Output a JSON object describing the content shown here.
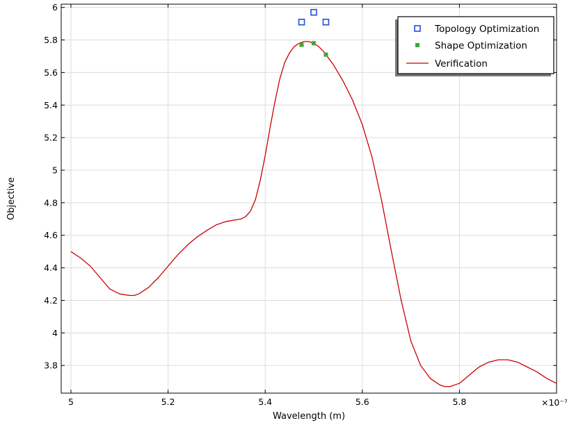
{
  "chart_data": {
    "type": "line",
    "xlabel": "Wavelength (m)",
    "ylabel": "Objective",
    "x_multiplier_label": "×10⁻⁷",
    "xlim": [
      4.98,
      6.0
    ],
    "ylim": [
      3.63,
      6.02
    ],
    "x_ticks": [
      5,
      5.2,
      5.4,
      5.6,
      5.8
    ],
    "x_tick_labels": [
      "5",
      "5.2",
      "5.4",
      "5.6",
      "5.8"
    ],
    "y_ticks": [
      3.8,
      4,
      4.2,
      4.4,
      4.6,
      4.8,
      5,
      5.2,
      5.4,
      5.6,
      5.8,
      6
    ],
    "y_tick_labels": [
      "3.8",
      "4",
      "4.2",
      "4.4",
      "4.6",
      "4.8",
      "5",
      "5.2",
      "5.4",
      "5.6",
      "5.8",
      "6"
    ],
    "grid": true,
    "legend_position": "top-right",
    "series": [
      {
        "name": "Topology Optimization",
        "kind": "scatter",
        "marker": "hollow-square",
        "color": "#1f4fe0",
        "x": [
          5.475,
          5.5,
          5.525
        ],
        "y": [
          5.91,
          5.97,
          5.91
        ]
      },
      {
        "name": "Shape Optimization",
        "kind": "scatter",
        "marker": "filled-square",
        "color": "#3aaa35",
        "x": [
          5.475,
          5.5,
          5.525
        ],
        "y": [
          5.77,
          5.78,
          5.71
        ]
      },
      {
        "name": "Verification",
        "kind": "line",
        "color": "#cc0000",
        "x": [
          5.0,
          5.02,
          5.04,
          5.06,
          5.08,
          5.1,
          5.12,
          5.13,
          5.14,
          5.16,
          5.18,
          5.2,
          5.22,
          5.24,
          5.26,
          5.28,
          5.3,
          5.32,
          5.34,
          5.35,
          5.36,
          5.37,
          5.38,
          5.39,
          5.4,
          5.41,
          5.42,
          5.43,
          5.44,
          5.45,
          5.46,
          5.47,
          5.48,
          5.49,
          5.5,
          5.51,
          5.52,
          5.53,
          5.54,
          5.56,
          5.58,
          5.6,
          5.62,
          5.64,
          5.66,
          5.68,
          5.7,
          5.72,
          5.74,
          5.76,
          5.77,
          5.78,
          5.8,
          5.82,
          5.84,
          5.86,
          5.88,
          5.9,
          5.92,
          5.94,
          5.96,
          5.98,
          6.0
        ],
        "y": [
          4.5,
          4.46,
          4.41,
          4.34,
          4.27,
          4.24,
          4.23,
          4.23,
          4.24,
          4.28,
          4.34,
          4.41,
          4.48,
          4.54,
          4.59,
          4.63,
          4.665,
          4.685,
          4.695,
          4.7,
          4.715,
          4.75,
          4.82,
          4.94,
          5.09,
          5.26,
          5.42,
          5.56,
          5.66,
          5.72,
          5.76,
          5.78,
          5.79,
          5.79,
          5.78,
          5.76,
          5.73,
          5.69,
          5.65,
          5.55,
          5.43,
          5.28,
          5.08,
          4.81,
          4.5,
          4.2,
          3.95,
          3.8,
          3.72,
          3.68,
          3.67,
          3.67,
          3.69,
          3.74,
          3.79,
          3.82,
          3.835,
          3.835,
          3.82,
          3.79,
          3.76,
          3.72,
          3.69
        ]
      }
    ]
  }
}
